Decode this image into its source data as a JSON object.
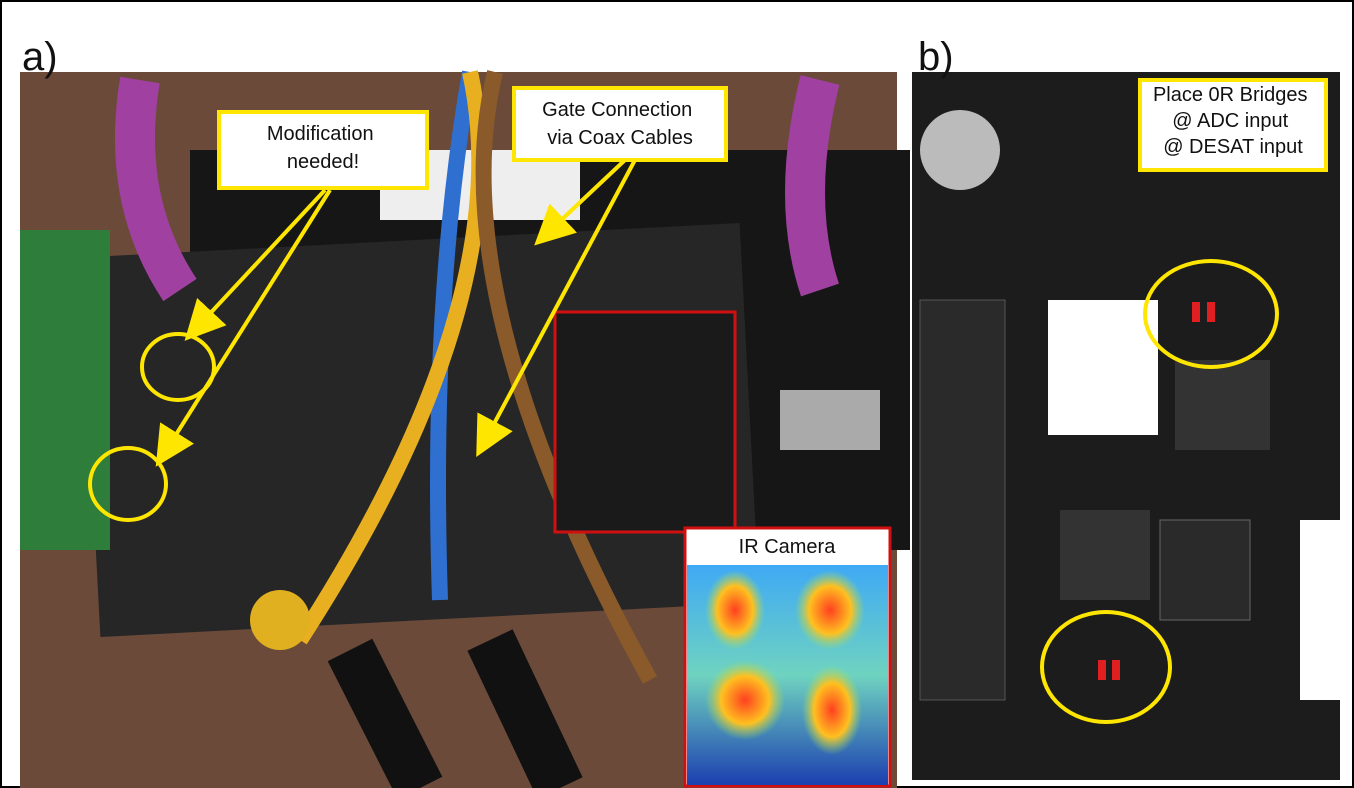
{
  "panels": {
    "a": {
      "label": "a)",
      "callouts": [
        {
          "lines": [
            "Modification",
            "needed!"
          ]
        },
        {
          "lines": [
            "Gate Connection",
            "via Coax Cables"
          ]
        }
      ],
      "inset_label": "IR Camera"
    },
    "b": {
      "label": "b)",
      "callouts": [
        {
          "lines": [
            "Place 0R Bridges",
            "@ ADC input",
            "@ DESAT input"
          ]
        }
      ]
    }
  }
}
